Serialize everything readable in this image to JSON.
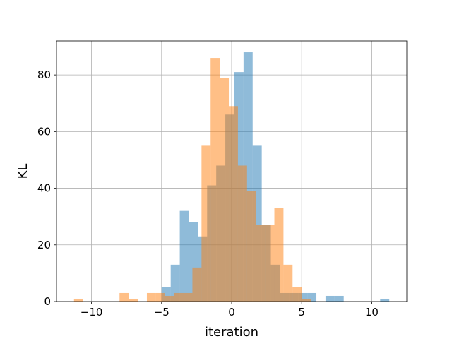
{
  "chart_data": {
    "type": "histogram",
    "title": "",
    "xlabel": "iteration",
    "ylabel": "KL",
    "xlim": [
      -12.5,
      12.5
    ],
    "ylim": [
      0,
      92
    ],
    "grid": true,
    "xticks": [
      -10,
      -5,
      0,
      5,
      10
    ],
    "yticks": [
      0,
      20,
      40,
      60,
      80
    ],
    "xtick_labels": [
      "−10",
      "−5",
      "0",
      "5",
      "10"
    ],
    "ytick_labels": [
      "0",
      "20",
      "40",
      "60",
      "80"
    ],
    "colors": {
      "blue": "#1f77b4",
      "orange": "#ff7f0e",
      "bar_alpha": 0.5,
      "grid": "#b0b0b0"
    },
    "series": [
      {
        "color": "#1f77b4",
        "bin_width": 0.65,
        "bins": [
          {
            "x": -5.0,
            "y": 5
          },
          {
            "x": -4.35,
            "y": 13
          },
          {
            "x": -3.7,
            "y": 32
          },
          {
            "x": -3.05,
            "y": 28
          },
          {
            "x": -2.4,
            "y": 23
          },
          {
            "x": -1.75,
            "y": 41
          },
          {
            "x": -1.1,
            "y": 48
          },
          {
            "x": -0.45,
            "y": 66
          },
          {
            "x": 0.2,
            "y": 81
          },
          {
            "x": 0.85,
            "y": 88
          },
          {
            "x": 1.5,
            "y": 55
          },
          {
            "x": 2.15,
            "y": 27
          },
          {
            "x": 2.8,
            "y": 13
          },
          {
            "x": 3.45,
            "y": 3
          },
          {
            "x": 4.1,
            "y": 3
          },
          {
            "x": 4.75,
            "y": 3
          },
          {
            "x": 5.4,
            "y": 3
          },
          {
            "x": 6.05,
            "y": 0
          },
          {
            "x": 6.7,
            "y": 2
          },
          {
            "x": 7.35,
            "y": 2
          },
          {
            "x": 10.6,
            "y": 1
          }
        ]
      },
      {
        "color": "#ff7f0e",
        "bin_width": 0.65,
        "bins": [
          {
            "x": -11.25,
            "y": 1
          },
          {
            "x": -8.0,
            "y": 3
          },
          {
            "x": -7.35,
            "y": 1
          },
          {
            "x": -6.05,
            "y": 3
          },
          {
            "x": -5.4,
            "y": 3
          },
          {
            "x": -4.75,
            "y": 2
          },
          {
            "x": -4.1,
            "y": 3
          },
          {
            "x": -3.45,
            "y": 3
          },
          {
            "x": -2.8,
            "y": 12
          },
          {
            "x": -2.15,
            "y": 55
          },
          {
            "x": -1.5,
            "y": 86
          },
          {
            "x": -0.85,
            "y": 79
          },
          {
            "x": -0.2,
            "y": 69
          },
          {
            "x": 0.45,
            "y": 48
          },
          {
            "x": 1.1,
            "y": 39
          },
          {
            "x": 1.75,
            "y": 27
          },
          {
            "x": 2.4,
            "y": 27
          },
          {
            "x": 3.05,
            "y": 33
          },
          {
            "x": 3.7,
            "y": 13
          },
          {
            "x": 4.35,
            "y": 5
          },
          {
            "x": 5.0,
            "y": 1
          }
        ]
      }
    ]
  }
}
